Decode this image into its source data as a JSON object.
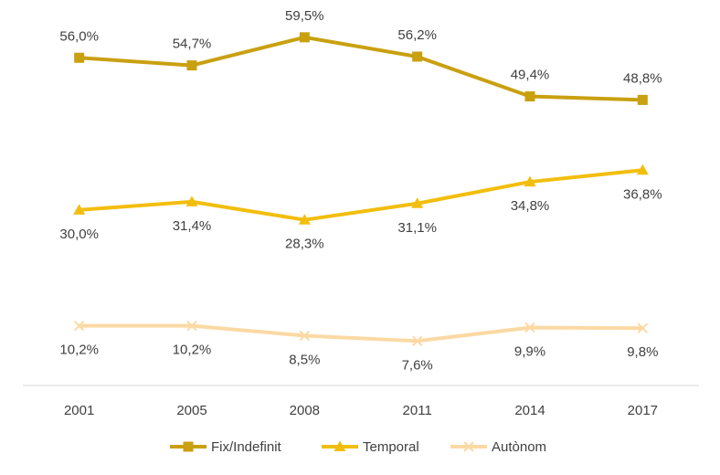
{
  "chart_data": {
    "type": "line",
    "title": "",
    "xlabel": "",
    "ylabel": "",
    "categories": [
      "2001",
      "2005",
      "2008",
      "2011",
      "2014",
      "2017"
    ],
    "ylim": [
      0,
      65
    ],
    "grid": false,
    "legend_position": "bottom",
    "series": [
      {
        "name": "Fix/Indefinit",
        "values": [
          56.0,
          54.7,
          59.5,
          56.2,
          49.4,
          48.8
        ],
        "labels": [
          "56,0%",
          "54,7%",
          "59,5%",
          "56,2%",
          "49,4%",
          "48,8%"
        ],
        "color": "#C9A010",
        "marker": "square",
        "label_position": "above"
      },
      {
        "name": "Temporal",
        "values": [
          30.0,
          31.4,
          28.3,
          31.1,
          34.8,
          36.8
        ],
        "labels": [
          "30,0%",
          "31,4%",
          "28,3%",
          "31,1%",
          "34,8%",
          "36,8%"
        ],
        "color": "#F2BE0E",
        "marker": "triangle",
        "label_position": "below"
      },
      {
        "name": "Autònom",
        "values": [
          10.2,
          10.2,
          8.5,
          7.6,
          9.9,
          9.8
        ],
        "labels": [
          "10,2%",
          "10,2%",
          "8,5%",
          "7,6%",
          "9,9%",
          "9,8%"
        ],
        "color": "#FBD9A3",
        "marker": "x",
        "label_position": "below"
      }
    ]
  }
}
